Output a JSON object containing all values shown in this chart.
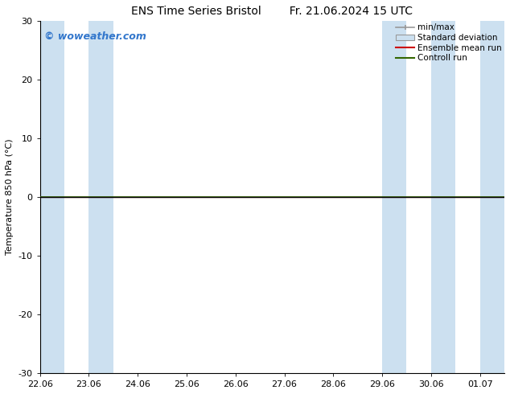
{
  "title_left": "ENS Time Series Bristol",
  "title_right": "Fr. 21.06.2024 15 UTC",
  "ylabel": "Temperature 850 hPa (°C)",
  "watermark": "© woweather.com",
  "watermark_color": "#3377cc",
  "ylim": [
    -30,
    30
  ],
  "yticks": [
    -30,
    -20,
    -10,
    0,
    10,
    20,
    30
  ],
  "xlim": [
    0,
    9.5
  ],
  "xtick_labels": [
    "22.06",
    "23.06",
    "24.06",
    "25.06",
    "26.06",
    "27.06",
    "28.06",
    "29.06",
    "30.06",
    "01.07"
  ],
  "xtick_positions": [
    0,
    1,
    2,
    3,
    4,
    5,
    6,
    7,
    8,
    9
  ],
  "shaded_bands": [
    {
      "x_start": 0.0,
      "x_end": 0.5,
      "color": "#cce0f0"
    },
    {
      "x_start": 1.0,
      "x_end": 1.5,
      "color": "#cce0f0"
    },
    {
      "x_start": 7.0,
      "x_end": 7.5,
      "color": "#cce0f0"
    },
    {
      "x_start": 8.0,
      "x_end": 8.5,
      "color": "#cce0f0"
    },
    {
      "x_start": 9.0,
      "x_end": 9.5,
      "color": "#cce0f0"
    }
  ],
  "zero_line_color": "#000000",
  "control_run_color": "#336600",
  "ensemble_mean_color": "#cc0000",
  "bg_color": "#ffffff",
  "font_size_title": 10,
  "font_size_axis": 8,
  "font_size_legend": 7.5,
  "font_size_watermark": 9
}
